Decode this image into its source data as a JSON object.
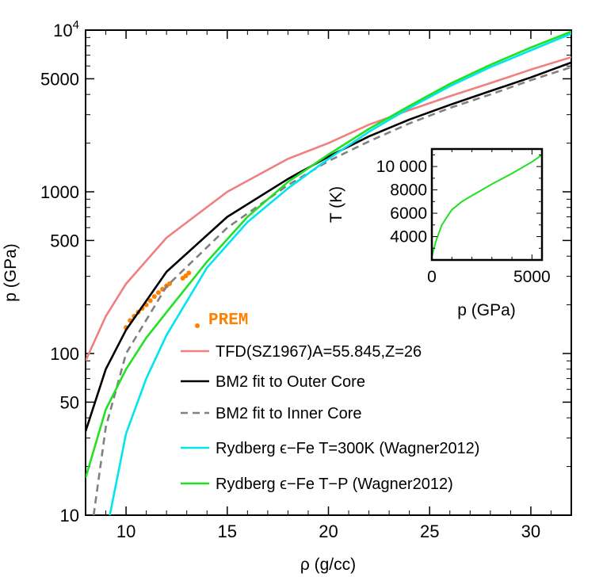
{
  "chart_data": [
    {
      "type": "line",
      "xlabel": "ρ (g/cc)",
      "ylabel": "p (GPa)",
      "xlim": [
        8,
        32
      ],
      "ylim": [
        10,
        10000
      ],
      "yscale": "log",
      "x_ticks": [
        "10",
        "15",
        "20",
        "25",
        "30"
      ],
      "y_ticks": [
        "10",
        "50",
        "100",
        "500",
        "1000",
        "5000",
        "10^4"
      ],
      "legend_position": "bottom-right",
      "series": [
        {
          "name": "PREM",
          "style": "points",
          "color": "#ff8000",
          "x": [
            10.0,
            10.2,
            10.4,
            10.6,
            10.8,
            11.0,
            11.2,
            11.4,
            11.6,
            11.8,
            12.0,
            12.15,
            12.8,
            12.95,
            13.1
          ],
          "y": [
            145,
            160,
            170,
            180,
            190,
            200,
            212,
            225,
            238,
            250,
            262,
            270,
            292,
            302,
            315
          ]
        },
        {
          "name": "TFD(SZ1967)A=55.845,Z=26",
          "style": "solid",
          "color": "#f08080",
          "x": [
            8,
            9,
            10,
            12,
            15,
            18,
            20,
            22,
            24,
            26,
            28,
            30,
            32
          ],
          "y": [
            90,
            170,
            270,
            520,
            1000,
            1600,
            2000,
            2600,
            3200,
            3900,
            4700,
            5700,
            6800
          ]
        },
        {
          "name": "BM2 fit to Outer Core",
          "style": "solid",
          "color": "#000000",
          "x": [
            8,
            9,
            10,
            12,
            15,
            18,
            20,
            22,
            24,
            26,
            28,
            30,
            32
          ],
          "y": [
            33,
            80,
            140,
            320,
            700,
            1200,
            1650,
            2200,
            2800,
            3450,
            4200,
            5100,
            6300
          ]
        },
        {
          "name": "BM2 fit to Inner Core",
          "style": "dashed",
          "color": "#808080",
          "x": [
            8.4,
            9,
            10,
            12,
            15,
            18,
            20,
            22,
            24,
            26,
            28,
            30,
            32
          ],
          "y": [
            10,
            35,
            100,
            260,
            600,
            1100,
            1550,
            2050,
            2650,
            3300,
            4000,
            4900,
            5900
          ]
        },
        {
          "name": "Rydberg ϵ−Fe T=300K (Wagner2012)",
          "style": "solid",
          "color": "#00e5ee",
          "x": [
            9.2,
            10,
            11,
            12,
            14,
            16,
            18,
            20,
            22,
            24,
            26,
            28,
            30,
            32
          ],
          "y": [
            10,
            32,
            70,
            130,
            340,
            650,
            1050,
            1600,
            2350,
            3300,
            4500,
            5900,
            7500,
            9500
          ]
        },
        {
          "name": "Rydberg ϵ−Fe T−P (Wagner2012)",
          "style": "solid",
          "color": "#22e022",
          "x": [
            8,
            9,
            10,
            11,
            12,
            14,
            16,
            18,
            20,
            22,
            24,
            26,
            28,
            30,
            32
          ],
          "y": [
            17,
            45,
            80,
            125,
            180,
            370,
            700,
            1150,
            1700,
            2450,
            3400,
            4650,
            6100,
            7800,
            9800
          ]
        }
      ]
    },
    {
      "type": "line",
      "xlabel": "p (GPa)",
      "ylabel": "T (K)",
      "xlim": [
        0,
        5500
      ],
      "ylim": [
        2000,
        11500
      ],
      "x_ticks": [
        "0",
        "5000"
      ],
      "y_ticks": [
        "4000",
        "6000",
        "8000",
        "10 000"
      ],
      "series": [
        {
          "name": "",
          "color": "#22e022",
          "x": [
            0,
            200,
            500,
            800,
            1000,
            1500,
            2000,
            3000,
            4000,
            5000,
            5500
          ],
          "y": [
            2300,
            3600,
            5000,
            5800,
            6300,
            7000,
            7500,
            8500,
            9400,
            10400,
            11000
          ]
        }
      ]
    }
  ]
}
